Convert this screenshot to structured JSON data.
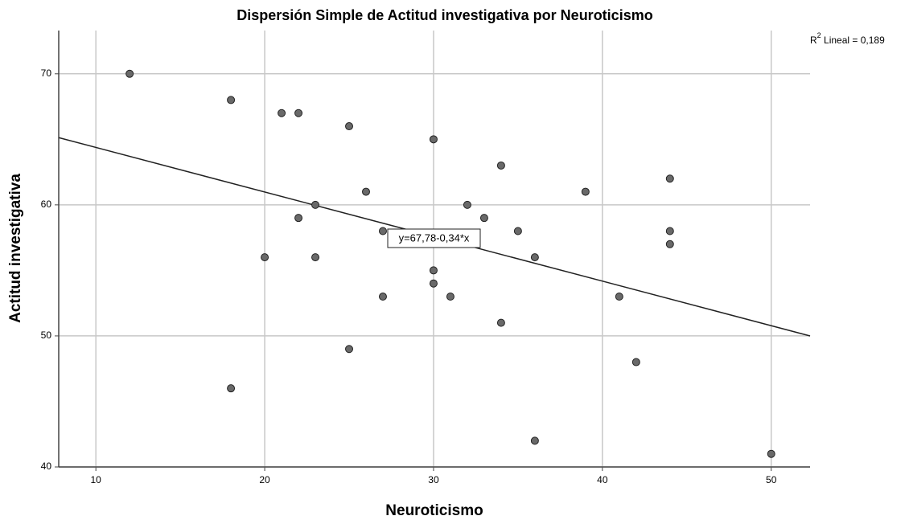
{
  "chart_data": {
    "type": "scatter",
    "title": "Dispersión Simple de Actitud investigativa por Neuroticismo",
    "x_label": "Neuroticismo",
    "y_label": "Actitud investigativa",
    "x": [
      12,
      18,
      21,
      22,
      25,
      30,
      34,
      44,
      26,
      39,
      23,
      32,
      22,
      33,
      27,
      35,
      44,
      44,
      20,
      23,
      36,
      30,
      30,
      27,
      31,
      41,
      34,
      25,
      42,
      18,
      36,
      50
    ],
    "values": [
      70,
      68,
      67,
      67,
      66,
      65,
      63,
      62,
      61,
      61,
      60,
      60,
      59,
      59,
      58,
      58,
      58,
      57,
      56,
      56,
      56,
      55,
      54,
      53,
      53,
      53,
      51,
      49,
      48,
      46,
      42,
      41
    ],
    "color": "#696969",
    "xlim": [
      7.8,
      52.3
    ],
    "ylim": [
      40,
      73.3
    ],
    "xticks": [
      10,
      20,
      30,
      40,
      50
    ],
    "yticks": [
      40,
      50,
      60,
      70
    ],
    "grid": true,
    "fit": {
      "intercept": 67.78,
      "slope": -0.34,
      "label": "y=67,78-0,34*x"
    },
    "r2_label": {
      "prefix": "R",
      "sup": "2",
      "text": " Lineal = 0,189"
    }
  }
}
